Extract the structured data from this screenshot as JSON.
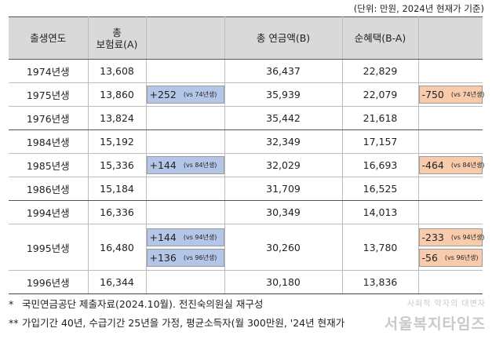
{
  "unit_note": "(단위: 만원, 2024년 현재가 기준)",
  "columns": {
    "birth_year": "출생연도",
    "premium_line1": "총",
    "premium_line2": "보험료(A)",
    "diff_premium": "",
    "total_pension": "총 연금액(B)",
    "net_benefit": "순혜택(B-A)",
    "diff_net": ""
  },
  "rows": [
    {
      "year": "1974년생",
      "premium": "13,608",
      "premium_diff": [],
      "pension": "36,437",
      "net": "22,829",
      "net_diff": []
    },
    {
      "year": "1975년생",
      "premium": "13,860",
      "premium_diff": [
        {
          "value": "+252",
          "vs": "(vs 74년생)"
        }
      ],
      "pension": "35,939",
      "net": "22,079",
      "net_diff": [
        {
          "value": "-750",
          "vs": "(vs 74년생)"
        }
      ]
    },
    {
      "year": "1976년생",
      "premium": "13,824",
      "premium_diff": [],
      "pension": "35,442",
      "net": "21,618",
      "net_diff": []
    },
    {
      "year": "1984년생",
      "premium": "15,192",
      "premium_diff": [],
      "pension": "32,349",
      "net": "17,157",
      "net_diff": []
    },
    {
      "year": "1985년생",
      "premium": "15,336",
      "premium_diff": [
        {
          "value": "+144",
          "vs": "(vs 84년생)"
        }
      ],
      "pension": "32,029",
      "net": "16,693",
      "net_diff": [
        {
          "value": "-464",
          "vs": "(vs 84년생)"
        }
      ]
    },
    {
      "year": "1986년생",
      "premium": "15,184",
      "premium_diff": [],
      "pension": "31,709",
      "net": "16,525",
      "net_diff": []
    },
    {
      "year": "1994년생",
      "premium": "16,336",
      "premium_diff": [],
      "pension": "30,349",
      "net": "14,013",
      "net_diff": []
    },
    {
      "year": "1995년생",
      "premium": "16,480",
      "premium_diff": [
        {
          "value": "+144",
          "vs": "(vs 94년생)"
        },
        {
          "value": "+136",
          "vs": "(vs 96년생)"
        }
      ],
      "pension": "30,260",
      "net": "13,780",
      "net_diff": [
        {
          "value": "-233",
          "vs": "(vs 94년생)"
        },
        {
          "value": "-56",
          "vs": "(vs 96년생)"
        }
      ]
    },
    {
      "year": "1996년생",
      "premium": "16,344",
      "premium_diff": [],
      "pension": "30,180",
      "net": "13,836",
      "net_diff": []
    }
  ],
  "footnotes": [
    {
      "mark": "*",
      "text": "국민연금공단 제출자료(2024.10월). 전진숙의원실 재구성"
    },
    {
      "mark": "**",
      "text": "가입기간 40년, 수급기간 25년을 가정, 평균소득자(월 300만원, '24년 현재가"
    }
  ],
  "watermark": {
    "top": "사회적 약자의 대변자",
    "main": "서울복지타임즈"
  },
  "colors": {
    "header_bg": "#d9d9d9",
    "increase_bg": "#b4c6e7",
    "decrease_bg": "#f8cbad"
  }
}
